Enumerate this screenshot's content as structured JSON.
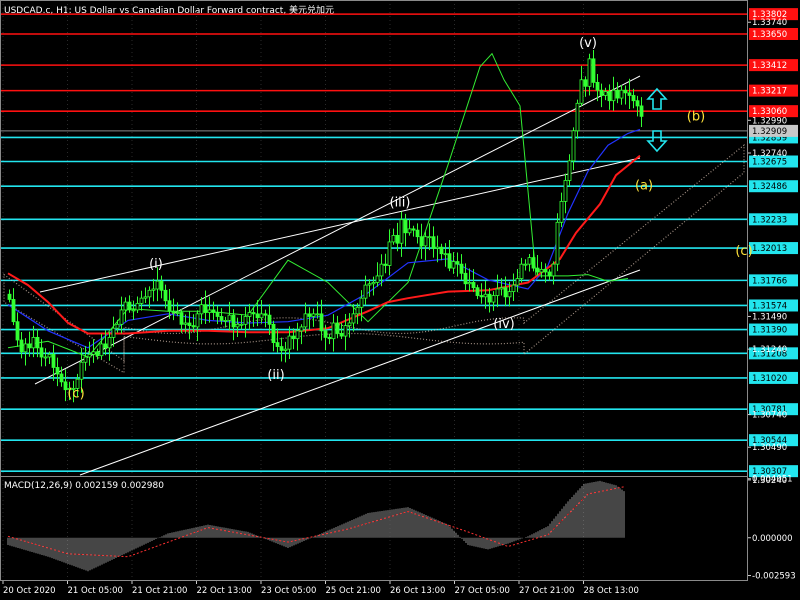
{
  "title": "USDCAD.c, H1:  US Dollar vs Canadian Dollar Forward contract, 美元兑加元",
  "macd_label": "MACD(12,26,9) 0.002159 0.002980",
  "colors": {
    "background": "#000000",
    "candle": "#33ff33",
    "resistance": "#ff1010",
    "support": "#22e5ee",
    "ma_red": "#ff1a1a",
    "ma_blue": "#2233ff",
    "ma_green": "#33ee33",
    "channel": "#ffffff",
    "cloud": "#d8c0b0",
    "wave_white": "#ffffff",
    "wave_yellow": "#ffe23a",
    "arrow": "#22e5ee"
  },
  "chart_data": [
    {
      "type": "line",
      "name": "price",
      "ylim": [
        1.3027,
        1.3391
      ],
      "x_ticks": [
        "20 Oct 2020",
        "21 Oct 05:00",
        "21 Oct 21:00",
        "22 Oct 13:00",
        "23 Oct 05:00",
        "25 Oct 21:00",
        "26 Oct 13:00",
        "27 Oct 05:00",
        "27 Oct 21:00",
        "28 Oct 13:00"
      ],
      "price_scale": [
        "1.33740",
        "1.32990",
        "1.32740",
        "1.31490",
        "1.31240",
        "1.30740",
        "1.30490",
        "1.30240"
      ],
      "resistance_levels": [
        "1.33802",
        "1.33650",
        "1.33412",
        "1.33217",
        "1.33060"
      ],
      "current_price": "1.32909",
      "support_levels": [
        "1.32859",
        "1.32675",
        "1.32486",
        "1.32233",
        "1.32013",
        "1.31766",
        "1.31574",
        "1.31390",
        "1.31208",
        "1.31020",
        "1.30781",
        "1.30544",
        "1.30307"
      ],
      "wave_labels": [
        {
          "text": "(c)",
          "x": 17,
          "y": 1.3087,
          "color": "yellow"
        },
        {
          "text": "(i)",
          "x": 37,
          "y": 1.3186,
          "color": "white"
        },
        {
          "text": "(ii)",
          "x": 67,
          "y": 1.3101,
          "color": "white"
        },
        {
          "text": "(iii)",
          "x": 98,
          "y": 1.3233,
          "color": "white"
        },
        {
          "text": "(iv)",
          "x": 124,
          "y": 1.314,
          "color": "white"
        },
        {
          "text": "(v)",
          "x": 145,
          "y": 1.3355,
          "color": "white"
        },
        {
          "text": "(b)",
          "x": 172,
          "y": 1.3299,
          "color": "yellow"
        },
        {
          "text": "(a)",
          "x": 159,
          "y": 1.3246,
          "color": "yellow"
        },
        {
          "text": "(c)",
          "x": 184,
          "y": 1.3196,
          "color": "yellow"
        }
      ],
      "series": [
        {
          "kind": "close",
          "x": [
            0,
            1,
            2,
            3,
            4,
            5,
            6,
            7,
            8,
            9,
            10,
            11,
            12,
            13,
            14,
            15,
            16,
            17,
            18,
            19,
            20,
            21,
            22,
            23,
            24,
            25,
            26,
            27,
            28,
            29,
            30,
            31,
            32,
            33,
            34,
            35,
            36,
            37,
            38,
            39,
            40,
            41,
            42,
            43,
            44,
            45,
            46,
            47,
            48,
            49,
            50,
            51,
            52,
            53,
            54,
            55,
            56,
            57,
            58,
            59,
            60,
            61,
            62,
            63,
            64,
            65,
            66,
            67,
            68,
            69,
            70,
            71,
            72,
            73,
            74,
            75,
            76,
            77,
            78,
            79,
            80,
            81,
            82,
            83,
            84,
            85,
            86,
            87,
            88,
            89,
            90,
            91,
            92,
            93,
            94,
            95,
            96,
            97,
            98,
            99,
            100,
            101,
            102,
            103,
            104,
            105,
            106,
            107,
            108,
            109,
            110,
            111,
            112,
            113,
            114,
            115,
            116,
            117,
            118,
            119,
            120,
            121,
            122,
            123,
            124,
            125,
            126,
            127,
            128,
            129,
            130,
            131,
            132,
            133,
            134,
            135,
            136,
            137,
            138,
            139,
            140,
            141,
            142,
            143,
            144,
            145,
            146,
            147,
            148,
            149,
            150,
            151,
            152,
            153,
            154,
            155,
            156,
            157,
            158
          ],
          "values": [
            1.3162,
            1.3145,
            1.3131,
            1.3122,
            1.3128,
            1.3125,
            1.3133,
            1.3125,
            1.3118,
            1.3118,
            1.312,
            1.311,
            1.3105,
            1.3099,
            1.3093,
            1.3094,
            1.3094,
            1.3101,
            1.3114,
            1.3118,
            1.312,
            1.3122,
            1.3119,
            1.3128,
            1.3125,
            1.3133,
            1.314,
            1.3143,
            1.3154,
            1.316,
            1.3154,
            1.3154,
            1.3159,
            1.3163,
            1.3164,
            1.3169,
            1.317,
            1.3176,
            1.3169,
            1.3161,
            1.3153,
            1.3152,
            1.3152,
            1.3143,
            1.3144,
            1.3142,
            1.3141,
            1.3151,
            1.3158,
            1.3152,
            1.3154,
            1.3152,
            1.3149,
            1.3146,
            1.3146,
            1.315,
            1.3141,
            1.3143,
            1.3143,
            1.3149,
            1.3152,
            1.3151,
            1.3148,
            1.3151,
            1.315,
            1.3143,
            1.3129,
            1.3126,
            1.3123,
            1.3124,
            1.3134,
            1.3132,
            1.3138,
            1.3141,
            1.3151,
            1.3149,
            1.3151,
            1.3151,
            1.3138,
            1.3133,
            1.3132,
            1.3144,
            1.3136,
            1.3134,
            1.3142,
            1.3144,
            1.3151,
            1.3156,
            1.3163,
            1.3173,
            1.3174,
            1.3175,
            1.318,
            1.3189,
            1.3188,
            1.3206,
            1.3211,
            1.3205,
            1.3223,
            1.3213,
            1.3216,
            1.3215,
            1.321,
            1.3203,
            1.321,
            1.321,
            1.3201,
            1.3202,
            1.3197,
            1.3197,
            1.3186,
            1.3191,
            1.3189,
            1.3182,
            1.3174,
            1.3175,
            1.3171,
            1.3165,
            1.3164,
            1.3166,
            1.316,
            1.3165,
            1.317,
            1.3171,
            1.3164,
            1.3168,
            1.3173,
            1.3178,
            1.3189,
            1.3189,
            1.3194,
            1.3186,
            1.3183,
            1.3185,
            1.3183,
            1.318,
            1.3189,
            1.3221,
            1.3237,
            1.3253,
            1.3268,
            1.3291,
            1.3312,
            1.333,
            1.3325,
            1.3346,
            1.3328,
            1.3322,
            1.3318,
            1.3321,
            1.3314,
            1.3322,
            1.3316,
            1.3322,
            1.332,
            1.3318,
            1.3314,
            1.331,
            1.3302
          ]
        },
        {
          "kind": "ma_red",
          "x": [
            0,
            5,
            10,
            15,
            20,
            30,
            40,
            50,
            60,
            70,
            80,
            90,
            95,
            100,
            110,
            120,
            130,
            138,
            142,
            148,
            152,
            158
          ],
          "values": [
            1.3182,
            1.3173,
            1.316,
            1.3144,
            1.3136,
            1.3136,
            1.3138,
            1.3138,
            1.3137,
            1.3137,
            1.314,
            1.3153,
            1.316,
            1.3163,
            1.3168,
            1.3169,
            1.3175,
            1.3193,
            1.3213,
            1.3235,
            1.3257,
            1.3272
          ]
        },
        {
          "kind": "ma_blue",
          "x": [
            0,
            10,
            20,
            30,
            40,
            50,
            60,
            70,
            80,
            90,
            100,
            110,
            120,
            130,
            135,
            140,
            145,
            150,
            155,
            158
          ],
          "values": [
            1.3158,
            1.3138,
            1.3125,
            1.3146,
            1.3151,
            1.3146,
            1.3144,
            1.3145,
            1.315,
            1.3167,
            1.319,
            1.3193,
            1.3177,
            1.317,
            1.3188,
            1.3228,
            1.326,
            1.328,
            1.3289,
            1.3292
          ]
        },
        {
          "kind": "ma_green",
          "x": [
            0,
            10,
            20,
            30,
            40,
            50,
            60,
            70,
            80,
            90,
            100,
            110,
            118,
            121,
            124,
            128,
            132,
            136,
            140,
            145,
            150,
            155
          ],
          "values": [
            1.3125,
            1.313,
            1.3118,
            1.3155,
            1.3153,
            1.3153,
            1.315,
            1.3192,
            1.3175,
            1.3145,
            1.3175,
            1.3265,
            1.334,
            1.335,
            1.333,
            1.331,
            1.318,
            1.318,
            1.318,
            1.3181,
            1.3176,
            1.3178
          ]
        }
      ]
    },
    {
      "type": "bar",
      "name": "macd",
      "ylim": [
        -0.0029,
        0.00417
      ],
      "price_scale": [
        "0.004051",
        "0.000000",
        "-0.002593"
      ],
      "x": [
        0,
        10,
        20,
        30,
        40,
        50,
        60,
        70,
        80,
        90,
        100,
        110,
        115,
        120,
        125,
        130,
        135,
        140,
        144,
        148,
        152,
        154
      ],
      "values": [
        -0.0005,
        -0.0013,
        -0.0023,
        -0.001,
        0.0003,
        0.0009,
        0.0004,
        -0.0007,
        0.0005,
        0.0017,
        0.0021,
        0.0009,
        -0.0005,
        -0.0008,
        -0.0004,
        0.0001,
        0.0008,
        0.0025,
        0.0037,
        0.0039,
        0.0036,
        0.0032
      ],
      "signal": {
        "x": [
          0,
          15,
          30,
          50,
          70,
          85,
          100,
          115,
          125,
          135,
          145,
          154
        ],
        "values": [
          0.0001,
          -0.0011,
          -0.0013,
          0.0007,
          -0.0003,
          0.0006,
          0.0018,
          0.0004,
          -0.0006,
          0.0002,
          0.003,
          0.0035
        ]
      }
    }
  ]
}
